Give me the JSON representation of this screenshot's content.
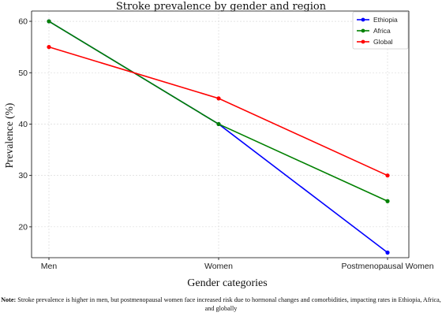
{
  "chart_data": {
    "type": "line",
    "title": "Stroke prevalence by gender and region",
    "xlabel": "Gender categories",
    "ylabel": "Prevalence (%)",
    "categories": [
      "Men",
      "Women",
      "Postmenopausal Women"
    ],
    "ylim": [
      14,
      62
    ],
    "yticks": [
      20,
      30,
      40,
      50,
      60
    ],
    "grid": true,
    "legend_position": "top-right",
    "series": [
      {
        "name": "Ethiopia",
        "color": "#0000ff",
        "values": [
          60,
          40,
          15
        ]
      },
      {
        "name": "Africa",
        "color": "#008000",
        "values": [
          60,
          40,
          25
        ]
      },
      {
        "name": "Global",
        "color": "#ff0000",
        "values": [
          55,
          45,
          30
        ]
      }
    ]
  },
  "note": {
    "label": "Note:",
    "text": " Stroke prevalence is higher in men, but postmenopausal women face increased risk due to hormonal changes and comorbidities, impacting rates in Ethiopia, Africa, and globally"
  }
}
